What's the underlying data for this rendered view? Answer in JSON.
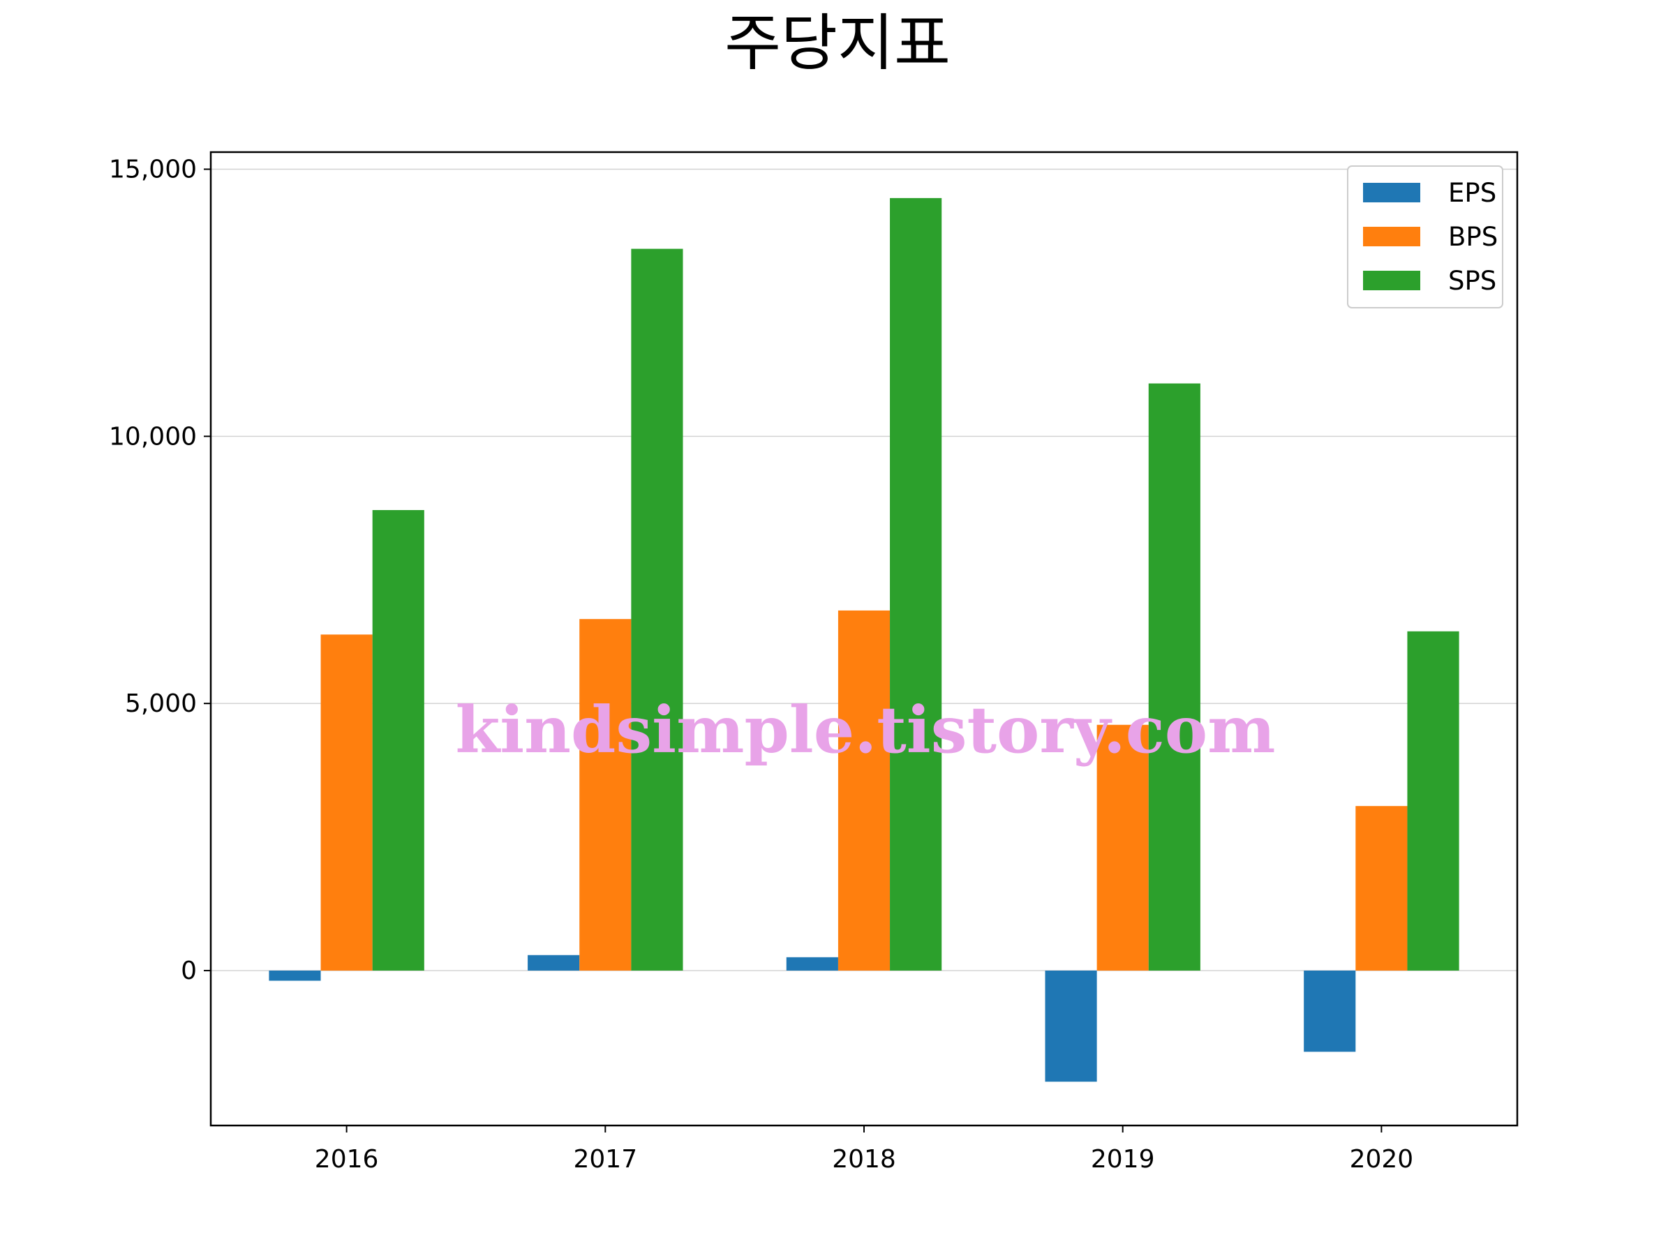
{
  "chart_data": {
    "type": "bar",
    "title": "주당지표",
    "xlabel": "",
    "ylabel": "",
    "categories": [
      "2016",
      "2017",
      "2018",
      "2019",
      "2020"
    ],
    "series": [
      {
        "name": "EPS",
        "color": "#1f77b4",
        "values": [
          -190,
          290,
          250,
          -2080,
          -1520
        ]
      },
      {
        "name": "BPS",
        "color": "#ff7f0e",
        "values": [
          6290,
          6580,
          6740,
          4600,
          3080
        ]
      },
      {
        "name": "SPS",
        "color": "#2ca02c",
        "values": [
          8620,
          13510,
          14460,
          10990,
          6350
        ]
      }
    ],
    "ylim": [
      -2900,
      15320
    ],
    "yticks": [
      0,
      5000,
      10000,
      15000
    ],
    "ytick_labels": [
      "0",
      "5,000",
      "10,000",
      "15,000"
    ],
    "grid": "y",
    "legend_position": "top-right"
  },
  "watermark": "kindsimple.tistory.com"
}
